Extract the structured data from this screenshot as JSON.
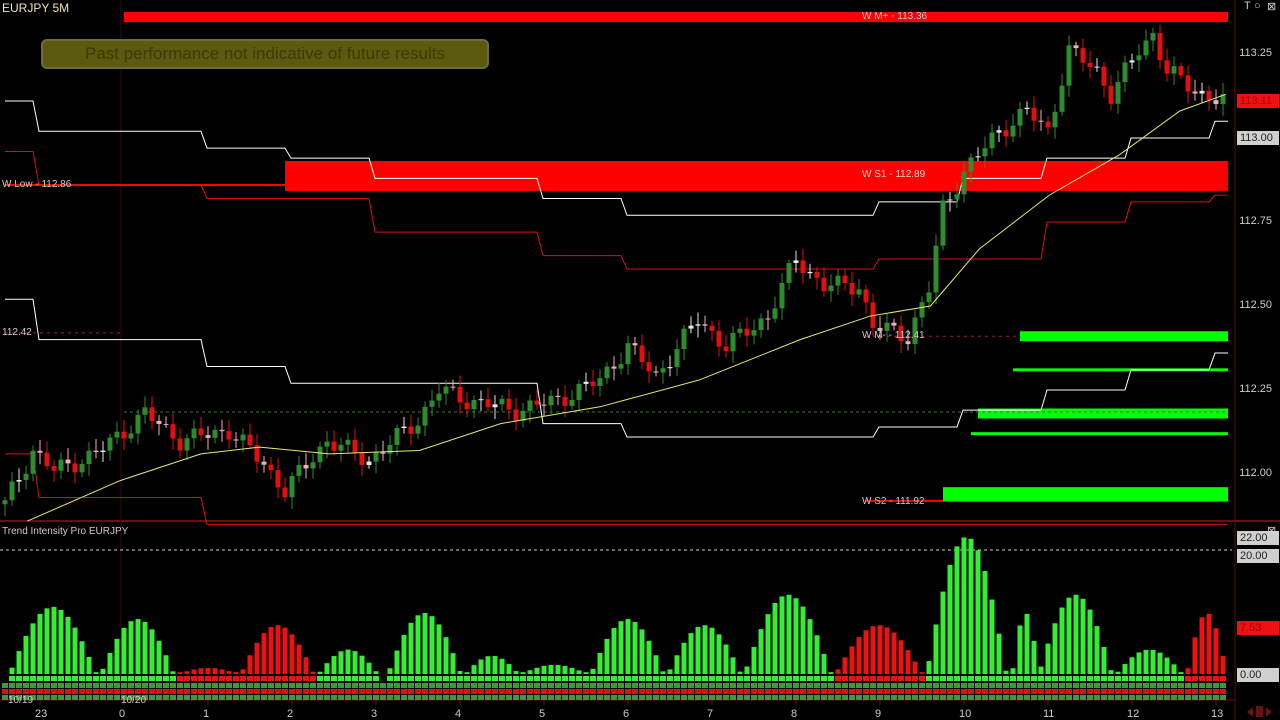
{
  "window": {
    "title": "EURJPY 5M",
    "disclaimer": "Past performance not indicative of future results",
    "controls": [
      "T",
      "○",
      "⊠"
    ]
  },
  "colors": {
    "bull": "#2e8b2e",
    "bear": "#e01010",
    "level_red": "#ff0000",
    "level_green": "#00ff00",
    "ma": "#e8e870",
    "channel_white": "#ffffff",
    "channel_red": "#dd1010",
    "hist_green": "#33ee33",
    "hist_red": "#ee1111"
  },
  "chart_data": [
    {
      "type": "candlestick",
      "symbol": "EURJPY",
      "timeframe": "5M",
      "y_ticks": [
        "112.00",
        "112.25",
        "112.50",
        "112.75",
        "113.00",
        "113.25"
      ],
      "ylim": [
        111.87,
        113.4
      ],
      "x_ticks": [
        "23",
        "0",
        "1",
        "2",
        "3",
        "4",
        "5",
        "6",
        "7",
        "8",
        "9",
        "10",
        "11",
        "12",
        "13"
      ],
      "date_labels": [
        "10/19",
        "10/20"
      ],
      "current_price": "113.11",
      "highlight_price": "113.00",
      "close_path": [
        [
          "22:35",
          111.91
        ],
        [
          "22:55",
          112.07
        ],
        [
          "23:10",
          112.01
        ],
        [
          "23:40",
          112.06
        ],
        [
          "00:15",
          112.18
        ],
        [
          "00:40",
          112.1
        ],
        [
          "01:15",
          112.13
        ],
        [
          "01:40",
          112.03
        ],
        [
          "01:55",
          111.95
        ],
        [
          "02:25",
          112.1
        ],
        [
          "02:55",
          112.04
        ],
        [
          "03:30",
          112.16
        ],
        [
          "03:45",
          112.25
        ],
        [
          "04:05",
          112.22
        ],
        [
          "04:40",
          112.19
        ],
        [
          "05:10",
          112.22
        ],
        [
          "05:40",
          112.28
        ],
        [
          "06:00",
          112.38
        ],
        [
          "06:20",
          112.29
        ],
        [
          "06:50",
          112.46
        ],
        [
          "07:10",
          112.38
        ],
        [
          "07:40",
          112.47
        ],
        [
          "08:00",
          112.64
        ],
        [
          "08:20",
          112.56
        ],
        [
          "08:45",
          112.56
        ],
        [
          "08:55",
          112.44
        ],
        [
          "09:20",
          112.41
        ],
        [
          "09:35",
          112.55
        ],
        [
          "09:45",
          112.79
        ],
        [
          "10:00",
          112.9
        ],
        [
          "10:25",
          113.02
        ],
        [
          "10:45",
          113.08
        ],
        [
          "11:00",
          113.02
        ],
        [
          "11:15",
          113.26
        ],
        [
          "11:35",
          113.2
        ],
        [
          "11:45",
          113.13
        ],
        [
          "12:05",
          113.26
        ],
        [
          "12:15",
          113.31
        ],
        [
          "12:25",
          113.2
        ],
        [
          "12:45",
          113.14
        ],
        [
          "13:05",
          113.11
        ]
      ],
      "moving_average": [
        [
          "22:51",
          111.86
        ],
        [
          "23:57",
          111.98
        ],
        [
          "00:55",
          112.06
        ],
        [
          "01:37",
          112.08
        ],
        [
          "02:27",
          112.06
        ],
        [
          "03:31",
          112.07
        ],
        [
          "04:29",
          112.15
        ],
        [
          "05:40",
          112.2
        ],
        [
          "06:51",
          112.28
        ],
        [
          "08:03",
          112.4
        ],
        [
          "08:53",
          112.47
        ],
        [
          "09:36",
          112.5
        ],
        [
          "10:11",
          112.67
        ],
        [
          "11:01",
          112.83
        ],
        [
          "11:51",
          112.95
        ],
        [
          "12:34",
          113.08
        ],
        [
          "13:07",
          113.13
        ]
      ],
      "channels": {
        "white_upper": [
          [
            "22:35",
            113.11
          ],
          [
            "22:55",
            113.02
          ],
          [
            "00:55",
            112.97
          ],
          [
            "01:55",
            112.94
          ],
          [
            "02:55",
            112.88
          ],
          [
            "04:55",
            112.82
          ],
          [
            "05:55",
            112.77
          ],
          [
            "08:55",
            112.81
          ],
          [
            "09:55",
            112.88
          ],
          [
            "10:55",
            112.94
          ],
          [
            "11:55",
            113.0
          ],
          [
            "12:55",
            113.05
          ]
        ],
        "white_lower": [
          [
            "22:35",
            112.52
          ],
          [
            "22:55",
            112.4
          ],
          [
            "00:55",
            112.32
          ],
          [
            "01:55",
            112.27
          ],
          [
            "04:55",
            112.15
          ],
          [
            "05:55",
            112.11
          ],
          [
            "08:55",
            112.14
          ],
          [
            "09:55",
            112.19
          ],
          [
            "10:55",
            112.25
          ],
          [
            "11:55",
            112.31
          ],
          [
            "12:55",
            112.36
          ]
        ],
        "red_upper": [
          [
            "22:35",
            112.96
          ],
          [
            "22:55",
            112.86
          ],
          [
            "00:55",
            112.82
          ],
          [
            "02:55",
            112.72
          ],
          [
            "04:55",
            112.65
          ],
          [
            "05:55",
            112.61
          ],
          [
            "08:55",
            112.64
          ],
          [
            "10:55",
            112.75
          ],
          [
            "11:55",
            112.81
          ],
          [
            "12:55",
            112.83
          ]
        ],
        "red_lower": [
          [
            "22:35",
            112.06
          ],
          [
            "22:55",
            111.93
          ],
          [
            "00:55",
            111.85
          ]
        ]
      },
      "levels": [
        {
          "label": "W M+ - 113.36",
          "price": 113.36,
          "from": "00:00",
          "style": "band"
        },
        {
          "label": "W S1 - 112.89",
          "price": 112.89,
          "from": "01:55",
          "style": "wide-band"
        },
        {
          "label": "W Low - 112.86",
          "price": 112.86,
          "from": "22:35",
          "style": "line"
        },
        {
          "label": "W M- - 112.41",
          "price": 112.41,
          "from": "08:50",
          "style": "dotted"
        },
        {
          "label": "W S2 - 111.92",
          "price": 111.92,
          "from": "08:50",
          "style": "line"
        },
        {
          "label": "112.42",
          "price": 112.42,
          "from": "22:35",
          "style": "dotted-short"
        }
      ],
      "green_zones": [
        {
          "price": 112.41,
          "from": "10:40"
        },
        {
          "price": 112.31,
          "from": "10:35"
        },
        {
          "price": 112.18,
          "from": "10:10"
        },
        {
          "price": 112.12,
          "from": "10:05"
        },
        {
          "price": 111.94,
          "from": "09:45"
        }
      ]
    },
    {
      "type": "bar",
      "title": "Trend Intensity Pro EURJPY",
      "y_ticks": [
        "22.00",
        "20.00",
        "0.00"
      ],
      "current_value": "7.53",
      "ylim": [
        0,
        23
      ],
      "waves": [
        [
          "22:40",
          "23:45",
          11,
          "green"
        ],
        [
          "23:45",
          "00:40",
          9,
          "green"
        ],
        [
          "00:40",
          "01:25",
          1,
          "red"
        ],
        [
          "01:25",
          "02:20",
          8,
          "red"
        ],
        [
          "02:20",
          "03:05",
          4,
          "green"
        ],
        [
          "03:10",
          "04:05",
          10,
          "green"
        ],
        [
          "04:05",
          "04:45",
          3,
          "green"
        ],
        [
          "04:45",
          "05:35",
          1.5,
          "green"
        ],
        [
          "05:35",
          "06:30",
          9,
          "green"
        ],
        [
          "06:30",
          "07:25",
          8,
          "green"
        ],
        [
          "07:25",
          "08:30",
          13,
          "green"
        ],
        [
          "08:30",
          "09:35",
          8,
          "red"
        ],
        [
          "09:35",
          "10:35",
          22.5,
          "green"
        ],
        [
          "10:35",
          "10:55",
          10,
          "green"
        ],
        [
          "10:55",
          "11:50",
          13,
          "green"
        ],
        [
          "11:50",
          "12:40",
          4,
          "green"
        ],
        [
          "12:40",
          "13:10",
          10,
          "red"
        ]
      ]
    }
  ]
}
